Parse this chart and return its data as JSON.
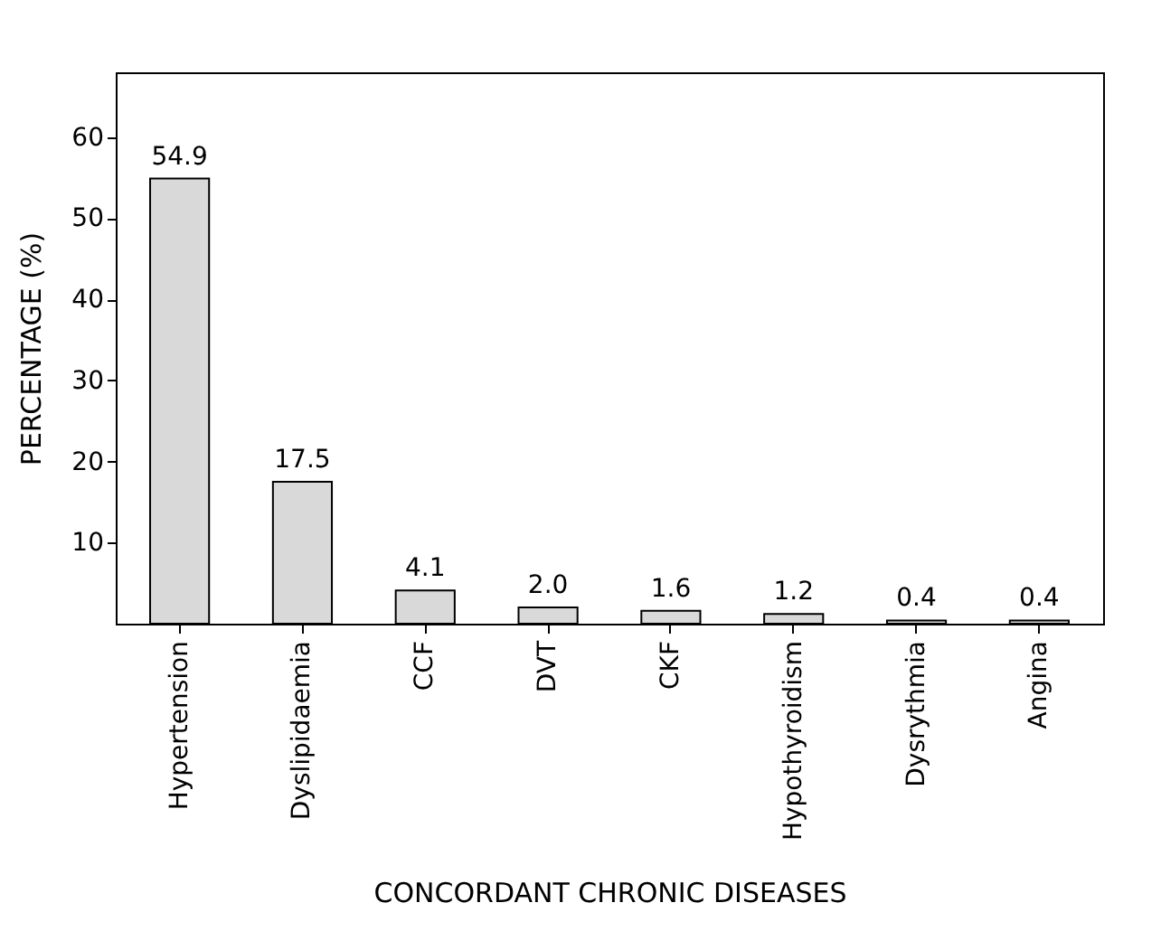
{
  "chart_data": {
    "type": "bar",
    "xlabel": "CONCORDANT CHRONIC DISEASES",
    "ylabel": "PERCENTAGE (%)",
    "categories": [
      "Hypertension",
      "Dyslipidaemia",
      "CCF",
      "DVT",
      "CKF",
      "Hypothyroidism",
      "Dysrythmia",
      "Angina"
    ],
    "values": [
      54.9,
      17.5,
      4.1,
      2.0,
      1.6,
      1.2,
      0.4,
      0.4
    ],
    "value_labels": [
      "54.9",
      "17.5",
      "4.1",
      "2.0",
      "1.6",
      "1.2",
      "0.4",
      "0.4"
    ],
    "color": "#d9d9d9",
    "ylim": [
      0,
      68
    ],
    "yticks": [
      10,
      20,
      30,
      40,
      50,
      60
    ]
  }
}
